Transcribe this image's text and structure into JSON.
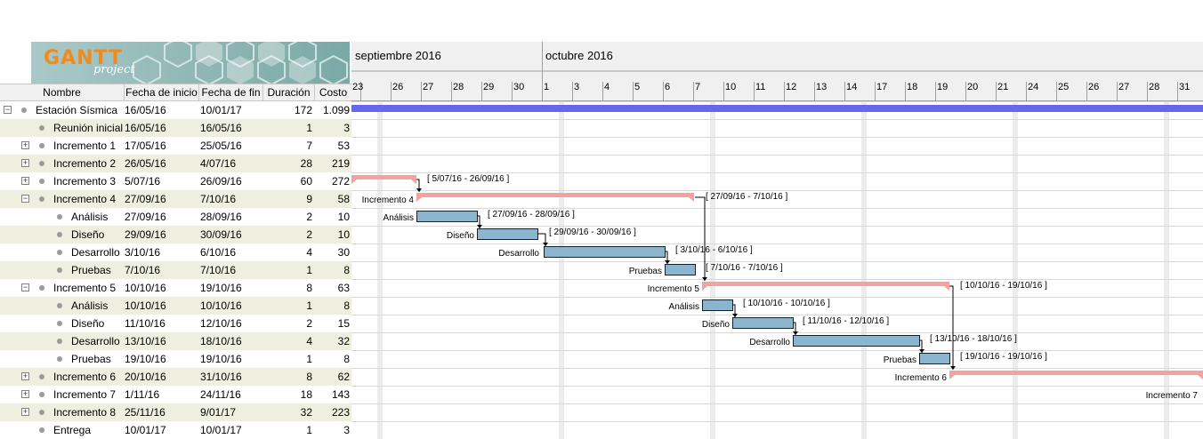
{
  "logo": {
    "text": "GANTT",
    "sub": "project"
  },
  "columns": {
    "name": "Nombre",
    "start": "Fecha de inicio",
    "end": "Fecha de fin",
    "duration": "Duración",
    "cost": "Costo"
  },
  "months": [
    {
      "label": "septiembre 2016"
    },
    {
      "label": "octubre 2016"
    }
  ],
  "days": [
    "23",
    "26",
    "27",
    "28",
    "29",
    "30",
    "1",
    "3",
    "4",
    "5",
    "6",
    "7",
    "10",
    "11",
    "12",
    "13",
    "14",
    "17",
    "18",
    "19",
    "20",
    "21",
    "24",
    "25",
    "26",
    "27",
    "28",
    "31"
  ],
  "tasks": [
    {
      "name": "Estación Sísmica",
      "start": "16/05/16",
      "end": "10/01/17",
      "duration": "172",
      "cost": "1.099",
      "level": 0,
      "expander": "minus"
    },
    {
      "name": "Reunión inicial",
      "start": "16/05/16",
      "end": "16/05/16",
      "duration": "1",
      "cost": "3",
      "level": 1,
      "expander": "none"
    },
    {
      "name": "Incremento 1",
      "start": "17/05/16",
      "end": "25/05/16",
      "duration": "7",
      "cost": "53",
      "level": 1,
      "expander": "plus"
    },
    {
      "name": "Incremento 2",
      "start": "26/05/16",
      "end": "4/07/16",
      "duration": "28",
      "cost": "219",
      "level": 1,
      "expander": "plus"
    },
    {
      "name": "Incremento 3",
      "start": "5/07/16",
      "end": "26/09/16",
      "duration": "60",
      "cost": "272",
      "level": 1,
      "expander": "plus"
    },
    {
      "name": "Incremento 4",
      "start": "27/09/16",
      "end": "7/10/16",
      "duration": "9",
      "cost": "58",
      "level": 1,
      "expander": "minus"
    },
    {
      "name": "Análisis",
      "start": "27/09/16",
      "end": "28/09/16",
      "duration": "2",
      "cost": "10",
      "level": 2,
      "expander": "none"
    },
    {
      "name": "Diseño",
      "start": "29/09/16",
      "end": "30/09/16",
      "duration": "2",
      "cost": "10",
      "level": 2,
      "expander": "none"
    },
    {
      "name": "Desarrollo",
      "start": "3/10/16",
      "end": "6/10/16",
      "duration": "4",
      "cost": "30",
      "level": 2,
      "expander": "none"
    },
    {
      "name": "Pruebas",
      "start": "7/10/16",
      "end": "7/10/16",
      "duration": "1",
      "cost": "8",
      "level": 2,
      "expander": "none"
    },
    {
      "name": "Incremento 5",
      "start": "10/10/16",
      "end": "19/10/16",
      "duration": "8",
      "cost": "63",
      "level": 1,
      "expander": "minus"
    },
    {
      "name": "Análisis",
      "start": "10/10/16",
      "end": "10/10/16",
      "duration": "1",
      "cost": "8",
      "level": 2,
      "expander": "none"
    },
    {
      "name": "Diseño",
      "start": "11/10/16",
      "end": "12/10/16",
      "duration": "2",
      "cost": "15",
      "level": 2,
      "expander": "none"
    },
    {
      "name": "Desarrollo",
      "start": "13/10/16",
      "end": "18/10/16",
      "duration": "4",
      "cost": "32",
      "level": 2,
      "expander": "none"
    },
    {
      "name": "Pruebas",
      "start": "19/10/16",
      "end": "19/10/16",
      "duration": "1",
      "cost": "8",
      "level": 2,
      "expander": "none"
    },
    {
      "name": "Incremento 6",
      "start": "20/10/16",
      "end": "31/10/16",
      "duration": "8",
      "cost": "62",
      "level": 1,
      "expander": "plus"
    },
    {
      "name": "Incremento 7",
      "start": "1/11/16",
      "end": "24/11/16",
      "duration": "18",
      "cost": "143",
      "level": 1,
      "expander": "plus"
    },
    {
      "name": "Incremento 8",
      "start": "25/11/16",
      "end": "9/01/17",
      "duration": "32",
      "cost": "223",
      "level": 1,
      "expander": "plus"
    },
    {
      "name": "Entrega",
      "start": "10/01/17",
      "end": "10/01/17",
      "duration": "1",
      "cost": "3",
      "level": 1,
      "expander": "none"
    }
  ],
  "gantt": {
    "colors": {
      "summary_root": "#6666ee",
      "summary": "#f7a0a0",
      "task": "#8bb4cf",
      "task_border": "#1f1f1f",
      "weekend": "#ececec",
      "grid": "#d8d8d8"
    },
    "labels": [
      {
        "row": 4,
        "right": "[ 5/07/16 - 26/09/16 ]"
      },
      {
        "row": 5,
        "left": "Incremento 4",
        "right": "[ 27/09/16 - 7/10/16 ]"
      },
      {
        "row": 6,
        "left": "Análisis",
        "right": "[ 27/09/16 - 28/09/16 ]"
      },
      {
        "row": 7,
        "left": "Diseño",
        "right": "[ 29/09/16 - 30/09/16 ]"
      },
      {
        "row": 8,
        "left": "Desarrollo",
        "right": "[ 3/10/16 - 6/10/16 ]"
      },
      {
        "row": 9,
        "left": "Pruebas",
        "right": "[ 7/10/16 - 7/10/16 ]"
      },
      {
        "row": 10,
        "left": "Incremento 5",
        "right": "[ 10/10/16 - 19/10/16 ]"
      },
      {
        "row": 11,
        "left": "Análisis",
        "right": "[ 10/10/16 - 10/10/16 ]"
      },
      {
        "row": 12,
        "left": "Diseño",
        "right": "[ 11/10/16 - 12/10/16 ]"
      },
      {
        "row": 13,
        "left": "Desarrollo",
        "right": "[ 13/10/16 - 18/10/16 ]"
      },
      {
        "row": 14,
        "left": "Pruebas",
        "right": "[ 19/10/16 - 19/10/16 ]"
      },
      {
        "row": 15,
        "left": "Incremento 6"
      },
      {
        "row": 16,
        "left": "Incremento 7"
      }
    ]
  }
}
